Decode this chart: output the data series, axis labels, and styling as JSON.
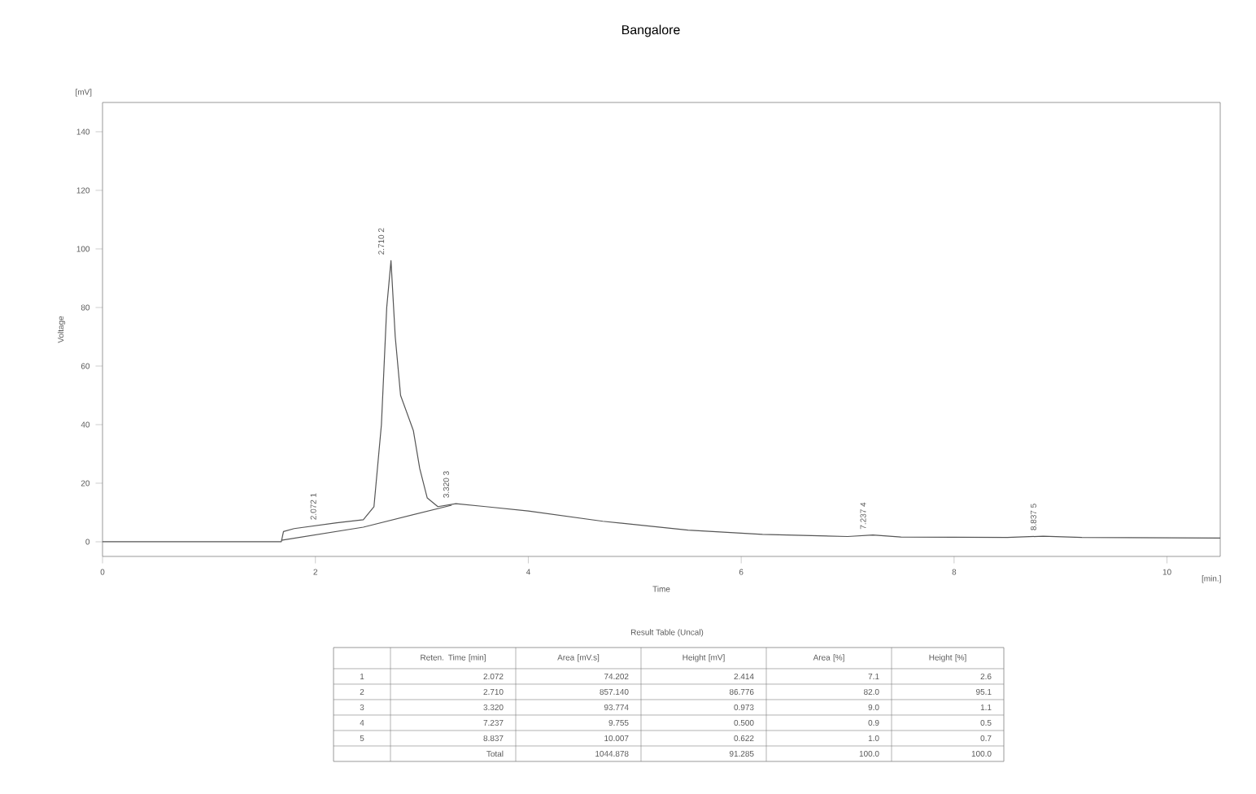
{
  "chart_data": {
    "type": "line",
    "title": "Bangalore",
    "xlabel": "Time",
    "ylabel": "Voltage",
    "xlim": [
      0,
      10.5
    ],
    "ylim": [
      -5,
      150
    ],
    "xticks": [
      0,
      2,
      4,
      6,
      8,
      10
    ],
    "yticks": [
      0,
      20,
      40,
      60,
      80,
      100,
      120,
      140
    ],
    "grid": false,
    "marker": "none",
    "line_style": "solid",
    "series": [
      {
        "color": "#555555",
        "x": [
          0,
          1.68,
          1.7,
          1.8,
          2.0,
          2.2,
          2.45,
          2.55,
          2.62,
          2.67,
          2.71,
          2.75,
          2.8,
          2.86,
          2.92,
          2.98,
          3.05,
          3.15,
          3.32,
          3.6,
          4.0,
          4.7,
          5.5,
          6.2,
          7.0,
          7.237,
          7.5,
          8.5,
          8.837,
          9.2,
          10.5
        ],
        "values": [
          0,
          0,
          3.5,
          4.5,
          5.5,
          6.5,
          7.5,
          12,
          40,
          80,
          96,
          70,
          50,
          44,
          38,
          25,
          15,
          12,
          13,
          12,
          10.5,
          7,
          4,
          2.5,
          1.8,
          2.3,
          1.6,
          1.5,
          1.9,
          1.5,
          1.3
        ]
      },
      {
        "color": "#555555",
        "x": [
          1.68,
          2.45,
          3.28
        ],
        "values": [
          0.5,
          5,
          12.5
        ]
      }
    ],
    "annotations": [
      {
        "text": "2.072 1",
        "x": 2.072,
        "y": 5.5
      },
      {
        "text": "2.710 2",
        "x": 2.71,
        "y": 96
      },
      {
        "text": "3.320 3",
        "x": 3.32,
        "y": 13
      },
      {
        "text": "7.237 4",
        "x": 7.237,
        "y": 2.3
      },
      {
        "text": "8.837 5",
        "x": 8.837,
        "y": 1.9
      },
      "[mV]",
      "[min.]",
      "Result Table (Uncal)",
      "Reten. Time [min]",
      "Area [mV.s]",
      "Height [mV]",
      "Area [%]",
      "Height [%]",
      "1",
      "2.072",
      "74.202",
      "2.414",
      "7.1",
      "2.6",
      "2",
      "2.710",
      "857.140",
      "86.776",
      "82.0",
      "95.1",
      "3",
      "3.320",
      "93.774",
      "0.973",
      "9.0",
      "1.1",
      "4",
      "7.237",
      "9.755",
      "0.500",
      "0.9",
      "0.5",
      "5",
      "8.837",
      "10.007",
      "0.622",
      "1.0",
      "0.7",
      "Total",
      "1044.878",
      "91.285",
      "100.0",
      "100.0"
    ]
  }
}
